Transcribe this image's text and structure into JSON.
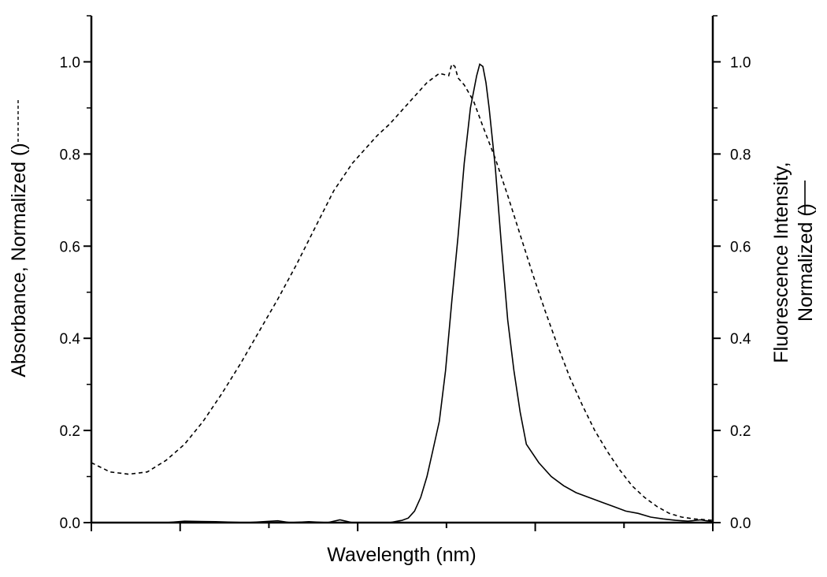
{
  "chart_data": {
    "type": "line",
    "xlabel": "Wavelength (nm)",
    "ylabel_left": "Absorbance, Normalized (",
    "ylabel_left_suffix": ")",
    "ylabel_right_line1": "Fluorescence Intensity,",
    "ylabel_right_line2": "Normalized (",
    "ylabel_right_suffix": ")",
    "x_tick_labels": [],
    "y_ticks_left": [
      "0.0",
      "0.2",
      "0.4",
      "0.6",
      "0.8",
      "1.0"
    ],
    "y_ticks_right": [
      "0.0",
      "0.2",
      "0.4",
      "0.6",
      "0.8",
      "1.0"
    ],
    "ylim_left": [
      0,
      1.1
    ],
    "ylim_right": [
      0,
      1.1
    ],
    "xlim": [
      0,
      1
    ],
    "grid": false,
    "legend": "none",
    "series": [
      {
        "style": "dashed",
        "axis": "left",
        "color": "#000000",
        "x": [
          0.0,
          0.03,
          0.06,
          0.09,
          0.12,
          0.15,
          0.18,
          0.21,
          0.24,
          0.27,
          0.3,
          0.33,
          0.36,
          0.39,
          0.42,
          0.44,
          0.46,
          0.48,
          0.5,
          0.52,
          0.54,
          0.56,
          0.575,
          0.58,
          0.585,
          0.59,
          0.6,
          0.615,
          0.63,
          0.65,
          0.67,
          0.69,
          0.71,
          0.73,
          0.75,
          0.77,
          0.79,
          0.81,
          0.83,
          0.85,
          0.87,
          0.89,
          0.91,
          0.93,
          0.95,
          0.97,
          1.0
        ],
        "y": [
          0.13,
          0.11,
          0.105,
          0.11,
          0.135,
          0.17,
          0.22,
          0.28,
          0.345,
          0.415,
          0.485,
          0.56,
          0.64,
          0.72,
          0.78,
          0.81,
          0.84,
          0.865,
          0.895,
          0.925,
          0.955,
          0.975,
          0.97,
          0.995,
          0.99,
          0.965,
          0.95,
          0.915,
          0.86,
          0.79,
          0.71,
          0.625,
          0.54,
          0.46,
          0.385,
          0.315,
          0.255,
          0.2,
          0.155,
          0.115,
          0.08,
          0.055,
          0.035,
          0.02,
          0.012,
          0.008,
          0.005
        ]
      },
      {
        "style": "solid",
        "axis": "right",
        "color": "#000000",
        "x": [
          0.0,
          0.12,
          0.15,
          0.2,
          0.25,
          0.3,
          0.32,
          0.35,
          0.38,
          0.4,
          0.42,
          0.45,
          0.48,
          0.5,
          0.51,
          0.52,
          0.53,
          0.54,
          0.55,
          0.56,
          0.57,
          0.58,
          0.59,
          0.6,
          0.61,
          0.62,
          0.625,
          0.63,
          0.635,
          0.64,
          0.65,
          0.66,
          0.67,
          0.68,
          0.69,
          0.7,
          0.72,
          0.74,
          0.76,
          0.78,
          0.8,
          0.82,
          0.84,
          0.86,
          0.88,
          0.9,
          0.92,
          0.94,
          0.96,
          0.98,
          1.0
        ],
        "y": [
          0.0,
          0.0,
          0.003,
          0.002,
          0.0,
          0.004,
          0.0,
          0.002,
          0.0,
          0.006,
          0.0,
          0.0,
          0.0,
          0.005,
          0.01,
          0.025,
          0.055,
          0.1,
          0.16,
          0.22,
          0.33,
          0.48,
          0.62,
          0.78,
          0.9,
          0.97,
          0.995,
          0.99,
          0.955,
          0.9,
          0.77,
          0.6,
          0.44,
          0.33,
          0.24,
          0.17,
          0.13,
          0.1,
          0.08,
          0.065,
          0.055,
          0.045,
          0.035,
          0.025,
          0.02,
          0.012,
          0.008,
          0.005,
          0.003,
          0.006,
          0.002
        ]
      }
    ]
  }
}
